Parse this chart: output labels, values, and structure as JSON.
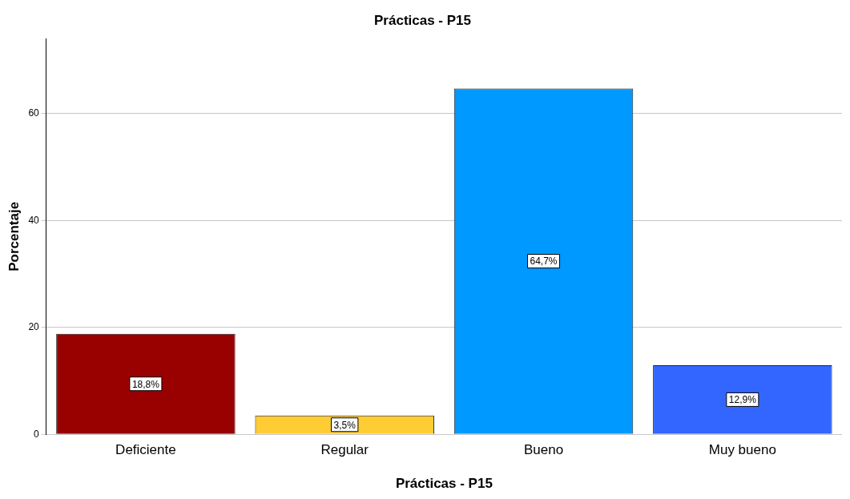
{
  "chart_data": {
    "type": "bar",
    "title": "Prácticas - P15",
    "xlabel": "Prácticas - P15",
    "ylabel": "Porcentaje",
    "categories": [
      "Deficiente",
      "Regular",
      "Bueno",
      "Muy bueno"
    ],
    "values": [
      18.8,
      3.5,
      64.7,
      12.9
    ],
    "value_labels": [
      "18,8%",
      "3,5%",
      "64,7%",
      "12,9%"
    ],
    "colors": [
      "#990000",
      "#ffcc33",
      "#0099ff",
      "#3366ff"
    ],
    "ylim": [
      0,
      74
    ],
    "yticks": [
      0,
      20,
      40,
      60
    ],
    "grid": "y",
    "legend": false
  }
}
